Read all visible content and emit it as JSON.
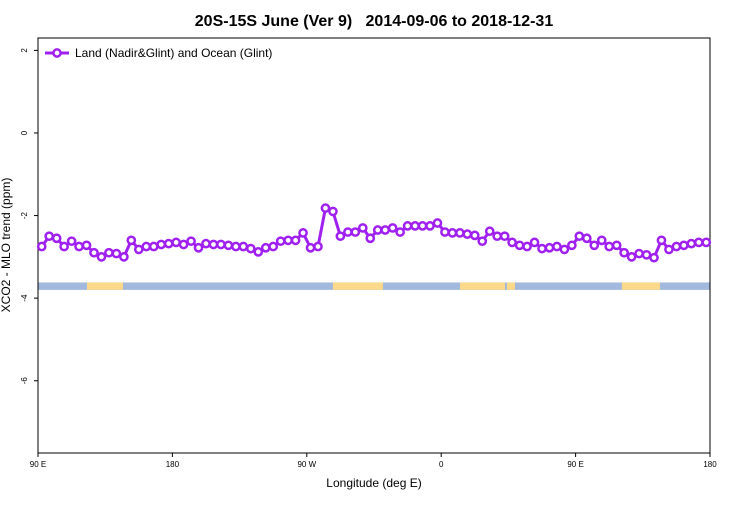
{
  "chart_data": {
    "type": "line",
    "title": "20S-15S June (Ver 9)   2014-09-06 to 2018-12-31",
    "xlabel": "Longitude (deg E)",
    "ylabel": "XCO2 - MLO trend (ppm)",
    "xlim": [
      90,
      540
    ],
    "ylim": [
      -7.75,
      2.3
    ],
    "xticks": [
      {
        "value": 90,
        "label": "90 E"
      },
      {
        "value": 180,
        "label": "180"
      },
      {
        "value": 270,
        "label": "90 W"
      },
      {
        "value": 360,
        "label": "0"
      },
      {
        "value": 450,
        "label": "90 E"
      },
      {
        "value": 540,
        "label": "180"
      }
    ],
    "yticks": [
      2,
      0,
      -2,
      -4,
      -6
    ],
    "legend": "top-left",
    "series": [
      {
        "name": "Land (Nadir&Glint) and Ocean (Glint)",
        "color": "#a020f0",
        "x": [
          92.5,
          97.5,
          102.5,
          107.5,
          112.5,
          117.5,
          122.5,
          127.5,
          132.5,
          137.5,
          142.5,
          147.5,
          152.5,
          157.5,
          162.5,
          167.5,
          172.5,
          177.5,
          182.5,
          187.5,
          192.5,
          197.5,
          202.5,
          207.5,
          212.5,
          217.5,
          222.5,
          227.5,
          232.5,
          237.5,
          242.5,
          247.5,
          252.5,
          257.5,
          262.5,
          267.5,
          272.5,
          277.5,
          282.5,
          287.5,
          292.5,
          297.5,
          302.5,
          307.5,
          312.5,
          317.5,
          322.5,
          327.5,
          332.5,
          337.5,
          342.5,
          347.5,
          352.5,
          357.5,
          362.5,
          367.5,
          372.5,
          377.5,
          382.5,
          387.5,
          392.5,
          397.5,
          402.5,
          407.5,
          412.5,
          417.5,
          422.5,
          427.5,
          432.5,
          437.5,
          442.5,
          447.5,
          452.5,
          457.5,
          462.5,
          467.5,
          472.5,
          477.5,
          482.5,
          487.5,
          492.5,
          497.5,
          502.5,
          507.5,
          512.5,
          517.5,
          522.5,
          527.5,
          532.5,
          537.5
        ],
        "values": [
          -2.75,
          -2.5,
          -2.55,
          -2.75,
          -2.62,
          -2.75,
          -2.72,
          -2.9,
          -3.0,
          -2.9,
          -2.92,
          -3.0,
          -2.6,
          -2.82,
          -2.75,
          -2.75,
          -2.7,
          -2.68,
          -2.65,
          -2.7,
          -2.62,
          -2.78,
          -2.68,
          -2.7,
          -2.7,
          -2.72,
          -2.75,
          -2.75,
          -2.8,
          -2.88,
          -2.78,
          -2.75,
          -2.62,
          -2.6,
          -2.6,
          -2.42,
          -2.78,
          -2.75,
          -1.82,
          -1.9,
          -2.5,
          -2.4,
          -2.4,
          -2.3,
          -2.55,
          -2.35,
          -2.35,
          -2.3,
          -2.4,
          -2.25,
          -2.25,
          -2.25,
          -2.25,
          -2.18,
          -2.4,
          -2.42,
          -2.42,
          -2.45,
          -2.48,
          -2.62,
          -2.38,
          -2.5,
          -2.5,
          -2.65,
          -2.72,
          -2.75,
          -2.65,
          -2.8,
          -2.78,
          -2.75,
          -2.82,
          -2.72,
          -2.5,
          -2.55,
          -2.72,
          -2.6,
          -2.75,
          -2.72,
          -2.9,
          -3.0,
          -2.92,
          -2.95,
          -3.02,
          -2.6,
          -2.82,
          -2.75,
          -2.72,
          -2.68,
          -2.65,
          -2.65
        ]
      }
    ],
    "surface_band": {
      "y": [
        -3.62,
        -3.8
      ],
      "ocean_color": "#a2b8dc",
      "land_color": "#fbd98a",
      "land": [
        [
          122.8,
          146.9
        ],
        [
          287.5,
          321
        ],
        [
          372.6,
          402.7
        ],
        [
          404,
          409.4
        ],
        [
          481,
          506.5
        ]
      ]
    }
  }
}
